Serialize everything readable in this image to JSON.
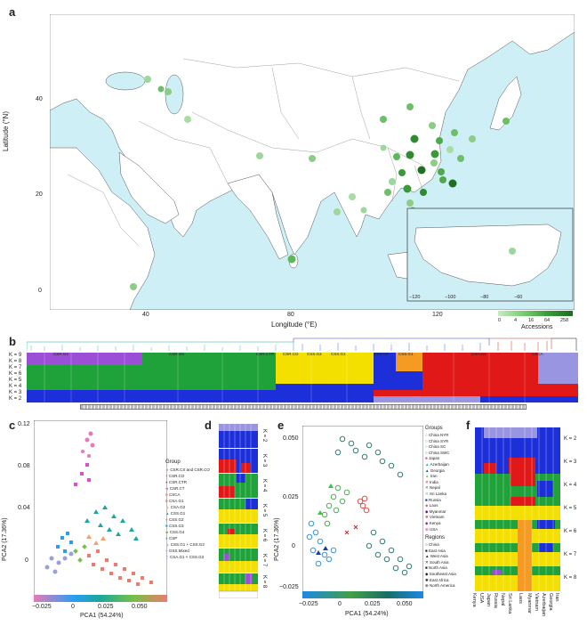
{
  "panels": {
    "a": {
      "letter": "a",
      "ylabel": "Latitude (°N)",
      "xlabel": "Longitude (°E)",
      "yticks": [
        "40",
        "20",
        "0"
      ],
      "xticks": [
        "40",
        "80",
        "120"
      ],
      "inset_ticks": [
        "−120",
        "−100",
        "−80",
        "−60"
      ],
      "legend_ticks": [
        "0",
        "4",
        "16",
        "64",
        "258"
      ],
      "legend_title": "Accessions"
    },
    "b": {
      "letter": "b",
      "k_labels": [
        "K = 9",
        "K = 8",
        "K = 7",
        "K = 6",
        "K = 5",
        "K = 4",
        "K = 3",
        "K = 2"
      ],
      "group_labels": [
        "CSR.G4",
        "CSR.G5",
        "CSR.CTR",
        "CSR.CO",
        "CSS.G3",
        "CSS.G1",
        "CSS.G3",
        "CSS.G1",
        "CSA.G1",
        "CSCA"
      ]
    },
    "c": {
      "letter": "c",
      "xlabel": "PCA1 (54.24%)",
      "ylabel": "PCA2 (17.36%)",
      "xticks": [
        "−0.025",
        "0",
        "0.025",
        "0.050"
      ],
      "yticks": [
        "0.12",
        "0.08",
        "0.04",
        "0"
      ],
      "legend_title": "Group",
      "groups": [
        {
          "name": "CSR.CS and CSR.CO",
          "color": "#e879b9",
          "marker": "star"
        },
        {
          "name": "CSR.CO",
          "color": "#d74fd6",
          "marker": "plus"
        },
        {
          "name": "CSR.CTR",
          "color": "#b54fc0",
          "marker": "circle"
        },
        {
          "name": "CSR.CT",
          "color": "#c07fd0",
          "marker": "diamond"
        },
        {
          "name": "CSCA",
          "color": "#f08080",
          "marker": "square"
        },
        {
          "name": "CSA.G1",
          "color": "#ef7a6b",
          "marker": "square"
        },
        {
          "name": "CSA.G2",
          "color": "#f4a070",
          "marker": "triangle"
        },
        {
          "name": "CSS.G1",
          "color": "#1aa89a",
          "marker": "triangle"
        },
        {
          "name": "CSS.G2",
          "color": "#4fc0c0",
          "marker": "circle"
        },
        {
          "name": "CSS.G3",
          "color": "#2a9df4",
          "marker": "square"
        },
        {
          "name": "CSS.G4",
          "color": "#77c047",
          "marker": "diamond"
        },
        {
          "name": "CSP",
          "color": "#6f8fd8",
          "marker": "circle"
        },
        {
          "name": "CSS.G1 + CSS.G2",
          "color": "#9aa1d8",
          "marker": "triangle"
        },
        {
          "name": "GSS.Mixed",
          "color": "#a9b0e0",
          "marker": "circle"
        },
        {
          "name": "CSA.G1 × CSS.G3",
          "color": "#c5a0e0",
          "marker": "cross"
        }
      ]
    },
    "d": {
      "letter": "d",
      "k_labels": [
        "K = 2",
        "K = 3",
        "K = 4",
        "K = 5",
        "K = 6",
        "K = 7",
        "K = 8"
      ]
    },
    "e": {
      "letter": "e",
      "xlabel": "PCA1 (54.24%)",
      "ylabel": "PCA2 (17.36%)",
      "xticks": [
        "−0.025",
        "0",
        "0.025",
        "0.050"
      ],
      "yticks": [
        "0.050",
        "0.025",
        "0",
        "−0.025"
      ],
      "groups_title": "Groups",
      "groups": [
        {
          "name": "China NYR",
          "color": "#e53935"
        },
        {
          "name": "China SYR",
          "color": "#1e88e5"
        },
        {
          "name": "China SC",
          "color": "#43a047"
        },
        {
          "name": "China SWC",
          "color": "#1a6e65"
        },
        {
          "name": "Japan",
          "color": "#e65c5c"
        },
        {
          "name": "Azerbaijan",
          "color": "#1aa89a"
        },
        {
          "name": "Georgia",
          "color": "#1f3fa0"
        },
        {
          "name": "Iran",
          "color": "#5cd65c"
        },
        {
          "name": "India",
          "color": "#c62828"
        },
        {
          "name": "Nepal",
          "color": "#2e7d32"
        },
        {
          "name": "Sri Lanka",
          "color": "#66bb6a"
        },
        {
          "name": "Russia",
          "color": "#283593"
        },
        {
          "name": "Laos",
          "color": "#f06292"
        },
        {
          "name": "Myanmar",
          "color": "#4a148c"
        },
        {
          "name": "Vietnam",
          "color": "#ef5350"
        },
        {
          "name": "Kenya",
          "color": "#8e24aa"
        },
        {
          "name": "USA",
          "color": "#e53935"
        }
      ],
      "regions_title": "Regions",
      "regions": [
        "China",
        "East Asia",
        "West Asia",
        "South Asia",
        "North Asia",
        "Southeast Asia",
        "East Africa",
        "North America"
      ]
    },
    "f": {
      "letter": "f",
      "k_labels": [
        "K = 2",
        "K = 3",
        "K = 4",
        "K = 5",
        "K = 6",
        "K = 7",
        "K = 8"
      ],
      "countries": [
        "Kenya",
        "USA",
        "Japan",
        "Russia",
        "Nepal",
        "Sri Lanka",
        "Laos",
        "Myanmar",
        "Vietnam",
        "Azerbaijan",
        "Georgia",
        "Iran"
      ]
    }
  },
  "colors": {
    "ocean": "#cdeff5",
    "land": "#ffffff",
    "purple": "#9b4fd6",
    "green": "#1fa23a",
    "yellow": "#f4e000",
    "red": "#e01818",
    "blue": "#1c2fd8",
    "orange": "#f59a22",
    "teal": "#2aa3a0",
    "lavender": "#9a95e0"
  }
}
